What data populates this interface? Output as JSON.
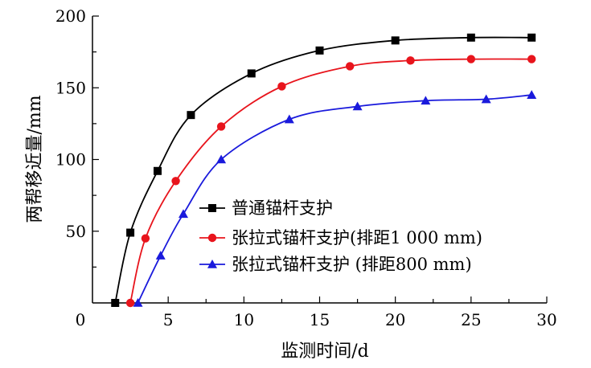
{
  "chart_data": {
    "type": "line",
    "title": "",
    "xlabel": "监测时间/d",
    "ylabel": "两帮移近量/mm",
    "xlim": [
      0,
      30
    ],
    "ylim": [
      0,
      200
    ],
    "xticks": [
      0,
      5,
      10,
      15,
      20,
      25,
      30
    ],
    "yticks": [
      50,
      100,
      150,
      200
    ],
    "xtick_labels": [
      "0",
      "5",
      "10",
      "15",
      "20",
      "25",
      "30"
    ],
    "ytick_labels": [
      "50",
      "100",
      "150",
      "200"
    ],
    "grid": false,
    "legend_position": "center-right",
    "series": [
      {
        "name": "普通锚杆支护",
        "color": "#000000",
        "marker": "square",
        "points": [
          [
            1.5,
            0
          ],
          [
            2.5,
            49
          ],
          [
            4.3,
            92
          ],
          [
            6.5,
            131
          ],
          [
            10.5,
            160
          ],
          [
            15,
            176
          ],
          [
            20,
            183
          ],
          [
            25,
            185
          ],
          [
            29,
            185
          ]
        ]
      },
      {
        "name": "张拉式锚杆支护(排距1 000 mm)",
        "color": "#e8141c",
        "marker": "circle",
        "points": [
          [
            2.5,
            0
          ],
          [
            3.5,
            45
          ],
          [
            5.5,
            85
          ],
          [
            8.5,
            123
          ],
          [
            12.5,
            151
          ],
          [
            17,
            165
          ],
          [
            21,
            169
          ],
          [
            25,
            170
          ],
          [
            29,
            170
          ]
        ]
      },
      {
        "name": "张拉式锚杆支护 (排距800 mm)",
        "color": "#1a1adc",
        "marker": "triangle",
        "points": [
          [
            3,
            0
          ],
          [
            4.5,
            33
          ],
          [
            6,
            62
          ],
          [
            8.5,
            100
          ],
          [
            13,
            128
          ],
          [
            17.5,
            137
          ],
          [
            22,
            141
          ],
          [
            26,
            142
          ],
          [
            29,
            145
          ]
        ]
      }
    ]
  }
}
